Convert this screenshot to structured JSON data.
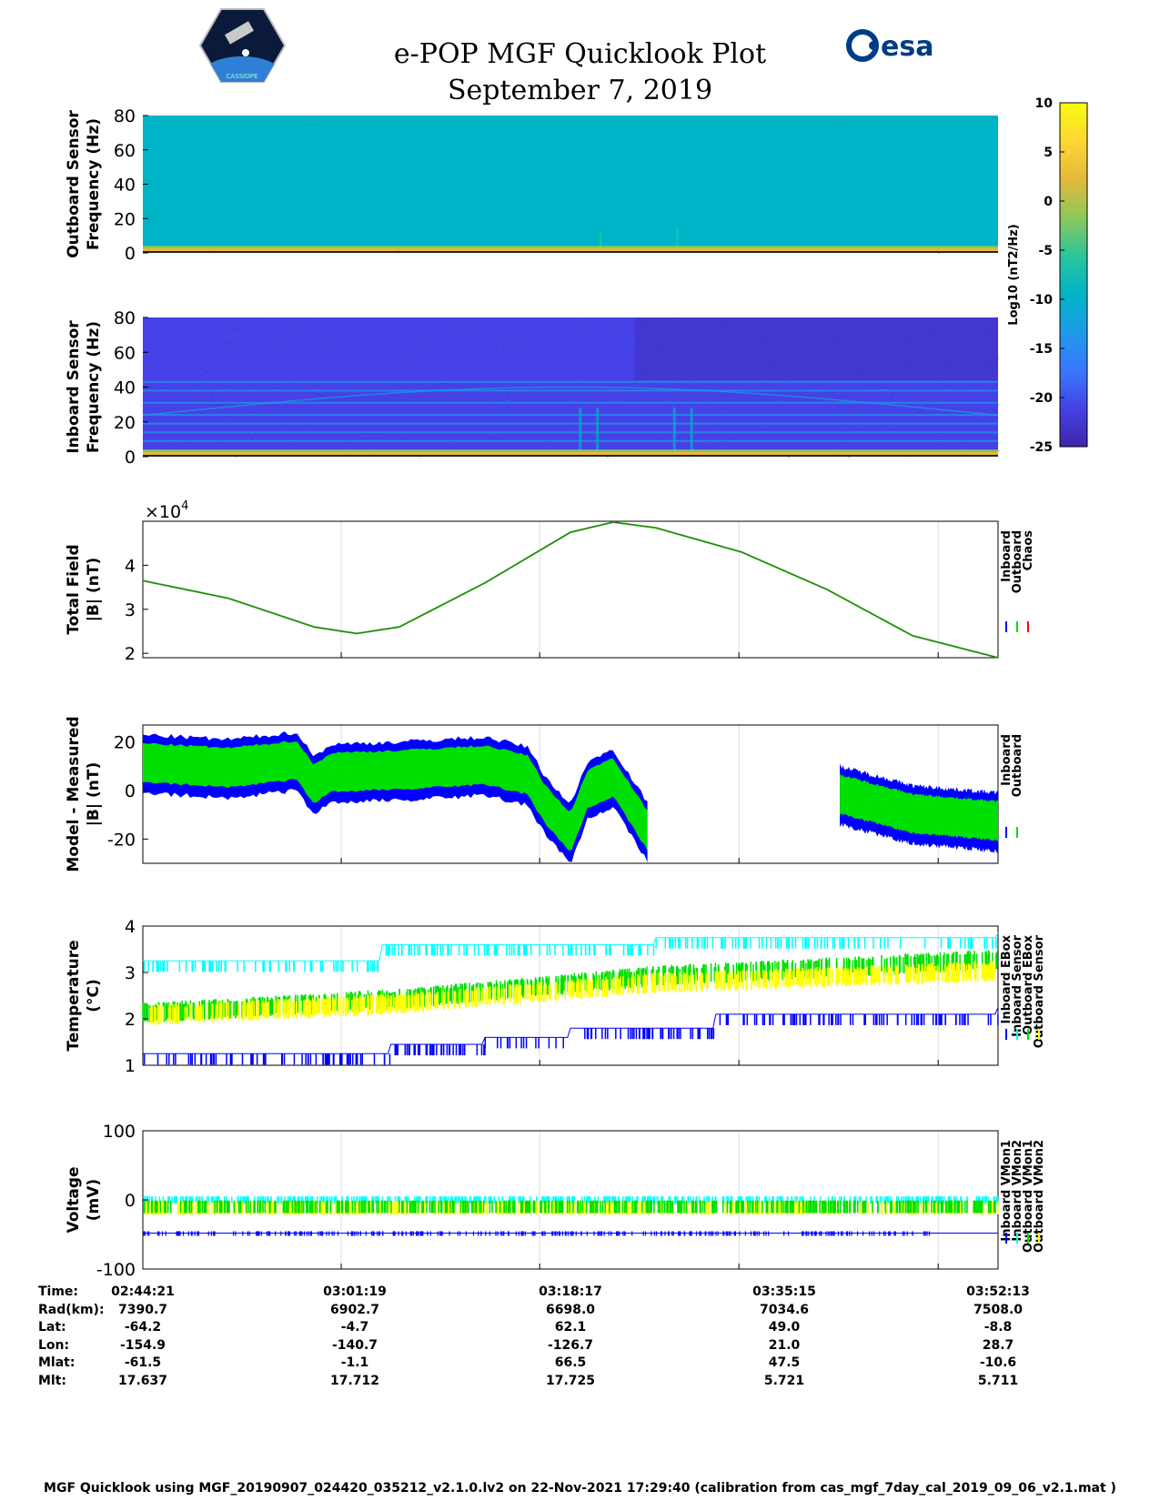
{
  "header": {
    "title": "e-POP MGF Quicklook Plot",
    "date": "September 7, 2019",
    "left_logo": "cassiope-mission-logo",
    "left_logo_caption": "CASSIOPE",
    "right_logo_text": "esa"
  },
  "chart_data": [
    {
      "type": "heatmap",
      "ylabel": [
        "Outboard Sensor",
        "Frequency (Hz)"
      ],
      "ylim": [
        0,
        80
      ],
      "yticks": [
        "80",
        "60",
        "40",
        "20",
        "0"
      ],
      "background_level": -10,
      "low_band": {
        "freq_range": [
          0,
          3
        ],
        "level": 3
      },
      "spikes_hz": [
        12,
        15
      ]
    },
    {
      "type": "heatmap",
      "ylabel": [
        "Inboard Sensor",
        "Frequency (Hz)"
      ],
      "ylim": [
        0,
        80
      ],
      "yticks": [
        "80",
        "60",
        "40",
        "20",
        "0"
      ],
      "background_level": -20,
      "low_band": {
        "freq_range": [
          0,
          3
        ],
        "level": 3
      },
      "lines_hz": [
        9,
        14,
        19,
        24,
        31,
        38,
        43
      ]
    },
    {
      "type": "line",
      "ylabel": [
        "Total Field",
        "|B| (nT)"
      ],
      "exponent": "×10",
      "exponent_power": "4",
      "ylim": [
        1.9,
        5.0
      ],
      "yticks": [
        "4",
        "3",
        "2"
      ],
      "legend": [
        "Inboard",
        "Outboard",
        "Chaos"
      ],
      "legend_colors": [
        "#0000ff",
        "#00e000",
        "#ff0000"
      ],
      "x_frac": [
        0,
        0.1,
        0.2,
        0.25,
        0.3,
        0.4,
        0.5,
        0.55,
        0.6,
        0.7,
        0.8,
        0.9,
        1.0
      ],
      "y": [
        3.65,
        3.25,
        2.6,
        2.45,
        2.6,
        3.6,
        4.75,
        4.98,
        4.85,
        4.3,
        3.45,
        2.4,
        1.9
      ]
    },
    {
      "type": "scatter",
      "ylabel": [
        "Model - Measured",
        "|B| (nT)"
      ],
      "ylim": [
        -30,
        27
      ],
      "yticks": [
        "20",
        "0",
        "-20"
      ],
      "legend": [
        "Inboard",
        "Outboard"
      ],
      "legend_colors": [
        "#0000ff",
        "#00e000"
      ],
      "segments": [
        {
          "x_frac": [
            0,
            0.1,
            0.18,
            0.2,
            0.22,
            0.3,
            0.35,
            0.4,
            0.45,
            0.47,
            0.5,
            0.52,
            0.55,
            0.59
          ],
          "center": [
            11,
            9,
            12,
            2,
            7,
            8,
            9,
            10,
            6,
            -6,
            -18,
            0,
            5,
            -17
          ]
        },
        {
          "x_frac": [
            0.815,
            0.9,
            1.0
          ],
          "center": [
            -2,
            -10,
            -13
          ]
        }
      ]
    },
    {
      "type": "scatter",
      "ylabel": [
        "Temperature",
        "(°C)"
      ],
      "ylim": [
        1,
        4
      ],
      "yticks": [
        "4",
        "3",
        "2",
        "1"
      ],
      "legend": [
        "Inboard EBox",
        "Inboard Sensor",
        "Outboard EBox",
        "Outboard Sensor"
      ],
      "legend_colors": [
        "#0000ff",
        "#00ffff",
        "#00e000",
        "#ffff00"
      ],
      "series": [
        {
          "name": "Inboard EBox",
          "color": "#0000ff",
          "steps": [
            [
              0,
              1.25
            ],
            [
              0.29,
              1.45
            ],
            [
              0.4,
              1.6
            ],
            [
              0.5,
              1.8
            ],
            [
              0.67,
              2.1
            ],
            [
              1.0,
              2.25
            ]
          ]
        },
        {
          "name": "Inboard Sensor",
          "color": "#00ffff",
          "steps": [
            [
              0,
              3.25
            ],
            [
              0.28,
              3.6
            ],
            [
              0.6,
              3.75
            ],
            [
              1.0,
              3.85
            ]
          ]
        },
        {
          "name": "Outboard EBox",
          "color": "#00e000",
          "trend": [
            [
              0,
              2.1
            ],
            [
              0.3,
              2.4
            ],
            [
              0.6,
              2.9
            ],
            [
              1.0,
              3.25
            ]
          ]
        },
        {
          "name": "Outboard Sensor",
          "color": "#ffff00",
          "trend": [
            [
              0,
              2.05
            ],
            [
              0.3,
              2.3
            ],
            [
              0.6,
              2.75
            ],
            [
              1.0,
              3.0
            ]
          ]
        }
      ]
    },
    {
      "type": "scatter",
      "ylabel": [
        "Voltage",
        "(mV)"
      ],
      "ylim": [
        -100,
        100
      ],
      "yticks": [
        "100",
        "0",
        "-100"
      ],
      "legend": [
        "Inboard VMon1",
        "Inboard VMon2",
        "Outboard VMon1",
        "Outboard VMon2"
      ],
      "legend_colors": [
        "#0000ff",
        "#00ffff",
        "#00e000",
        "#ffff00"
      ],
      "series": [
        {
          "name": "Inboard VMon1",
          "color": "#0000ff",
          "level": -48
        },
        {
          "name": "Inboard VMon2",
          "color": "#00ffff",
          "level": 0
        },
        {
          "name": "Outboard VMon1",
          "color": "#00e000",
          "level": -10
        },
        {
          "name": "Outboard VMon2",
          "color": "#ffff00",
          "level": -12
        }
      ]
    }
  ],
  "colorbar": {
    "label": "Log10 (nT2/Hz)",
    "ticks": [
      "10",
      "5",
      "0",
      "-5",
      "-10",
      "-15",
      "-20",
      "-25"
    ],
    "range": [
      -25,
      10
    ],
    "colormap": [
      "#3e26a8",
      "#4541e6",
      "#3a78ff",
      "#1d9be6",
      "#00b4c8",
      "#2bc59a",
      "#8ec85a",
      "#e3b93a",
      "#fcd734",
      "#f9fb0e"
    ]
  },
  "table": {
    "row_labels": [
      "Time:",
      "Rad(km):",
      "Lat:",
      "Lon:",
      "Mlat:",
      "Mlt:"
    ],
    "columns": [
      [
        "02:44:21",
        "7390.7",
        "-64.2",
        "-154.9",
        "-61.5",
        "17.637"
      ],
      [
        "03:01:19",
        "6902.7",
        "-4.7",
        "-140.7",
        "-1.1",
        "17.712"
      ],
      [
        "03:18:17",
        "6698.0",
        "62.1",
        "-126.7",
        "66.5",
        "17.725"
      ],
      [
        "03:35:15",
        "7034.6",
        "49.0",
        "21.0",
        "47.5",
        "5.721"
      ],
      [
        "03:52:13",
        "7508.0",
        "-8.8",
        "28.7",
        "-10.6",
        "5.711"
      ]
    ]
  },
  "footer": "MGF Quicklook using MGF_20190907_024420_035212_v2.1.0.lv2 on 22-Nov-2021 17:29:40 (calibration from cas_mgf_7day_cal_2019_09_06_v2.1.mat )"
}
